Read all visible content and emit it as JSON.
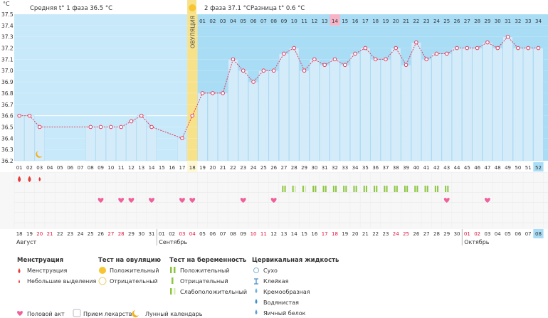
{
  "header": {
    "unit": "°C",
    "phase1": "Средняя t° 1 фаза 36.5 °C",
    "ovulation": "ОВУЛЯЦИЯ",
    "phase2": "2 фаза 37.1 °C",
    "diff": "Разница t° 0.6 °C"
  },
  "chart_data": {
    "type": "line",
    "title": "",
    "ylim": [
      36.2,
      37.5
    ],
    "y_ticks": [
      "37.5",
      "37.4",
      "37.3",
      "37.2",
      "37.1",
      "37.0",
      "36.9",
      "36.8",
      "36.7",
      "36.6",
      "36.5",
      "36.4",
      "36.3",
      "36.2"
    ],
    "cycle_days": [
      "01",
      "02",
      "03",
      "04",
      "05",
      "06",
      "07",
      "08",
      "09",
      "10",
      "11",
      "12",
      "13",
      "14",
      "15",
      "16",
      "17",
      "18",
      "19",
      "20",
      "21",
      "22",
      "23",
      "24",
      "25",
      "26",
      "27",
      "28",
      "29",
      "30",
      "31",
      "32",
      "33",
      "34",
      "35",
      "36",
      "37",
      "38",
      "39",
      "40",
      "41",
      "42",
      "43",
      "44",
      "45",
      "46",
      "47",
      "48",
      "49",
      "50",
      "51",
      "52"
    ],
    "post_ovulation_days": [
      "01",
      "02",
      "03",
      "04",
      "05",
      "06",
      "07",
      "08",
      "09",
      "10",
      "11",
      "12",
      "13",
      "14",
      "15",
      "16",
      "17",
      "18",
      "19",
      "20",
      "21",
      "22",
      "23",
      "24",
      "25",
      "26",
      "27",
      "28",
      "29",
      "30",
      "31",
      "32",
      "33",
      "34"
    ],
    "calendar_dates": [
      "18",
      "19",
      "20",
      "21",
      "22",
      "23",
      "24",
      "25",
      "26",
      "27",
      "28",
      "29",
      "30",
      "31",
      "01",
      "02",
      "03",
      "04",
      "05",
      "06",
      "07",
      "08",
      "09",
      "10",
      "11",
      "12",
      "13",
      "14",
      "15",
      "16",
      "17",
      "18",
      "19",
      "20",
      "21",
      "22",
      "23",
      "24",
      "25",
      "26",
      "27",
      "28",
      "29",
      "30",
      "01",
      "02",
      "03",
      "04",
      "05",
      "06",
      "07",
      "08"
    ],
    "weekend_dates": [
      2,
      3,
      9,
      10,
      16,
      17,
      23,
      24,
      30,
      31,
      37,
      38,
      44,
      45
    ],
    "months": [
      {
        "label": "Август",
        "day": 0
      },
      {
        "label": "Сентябрь",
        "day": 14
      },
      {
        "label": "Октябрь",
        "day": 44
      }
    ],
    "series": [
      {
        "values": [
          36.6,
          36.6,
          36.5,
          null,
          null,
          null,
          null,
          36.5,
          36.5,
          36.5,
          36.5,
          36.55,
          36.6,
          36.5,
          null,
          null,
          36.4,
          36.6,
          36.8,
          36.8,
          36.8,
          37.1,
          37.0,
          36.9,
          37.0,
          37.0,
          37.15,
          37.2,
          37.0,
          37.1,
          37.05,
          37.1,
          37.05,
          37.15,
          37.2,
          37.1,
          37.1,
          37.2,
          37.05,
          37.25,
          37.1,
          37.15,
          37.15,
          37.2,
          37.2,
          37.2,
          37.25,
          37.2,
          37.3,
          37.2,
          37.2,
          37.2
        ]
      }
    ],
    "ovulation_day_index": 17,
    "highlighted_day_index": 31,
    "today_index": 51,
    "menstruation": {
      "full": [
        0,
        1
      ],
      "light": [
        2
      ]
    },
    "intercourse": [
      8,
      10,
      11,
      13,
      16,
      17,
      22,
      25,
      42,
      46
    ],
    "pregnancy_test_positive": [
      26,
      27,
      28,
      29,
      30,
      31,
      32,
      33,
      34,
      35,
      36,
      37,
      38,
      39,
      40,
      41,
      42
    ],
    "pregnancy_test_weak": [
      27,
      28
    ],
    "moon_day": 2
  },
  "legend": {
    "menstruation": {
      "title": "Менструация",
      "items": [
        "Менструация",
        "Небольшие выделения"
      ]
    },
    "ovulation_test": {
      "title": "Тест на овуляцию",
      "items": [
        "Положительный",
        "Отрицательный"
      ]
    },
    "pregnancy_test": {
      "title": "Тест на беременность",
      "items": [
        "Положительный",
        "Отрицательный",
        "Слабоположительный"
      ]
    },
    "cervical": {
      "title": "Цервикальная жидкость",
      "items": [
        "Сухо",
        "Клейкая",
        "Кремообразная",
        "Водянистая",
        "Яичный белок"
      ]
    },
    "other": [
      "Половой акт",
      "Прием лекарств",
      "Лунный календарь"
    ]
  },
  "colors": {
    "bar": "#d4ecfa",
    "bar_edge": "#a8d6f0",
    "post_bg": "#a9dcf5",
    "pre_bg": "#c8e9fa",
    "line": "#e03a5d",
    "ovulation": "#f7e28a",
    "highlight": "#f8b4c6",
    "heart": "#f0609a",
    "drop": "#e63a3a",
    "test": "#8cc63f"
  }
}
